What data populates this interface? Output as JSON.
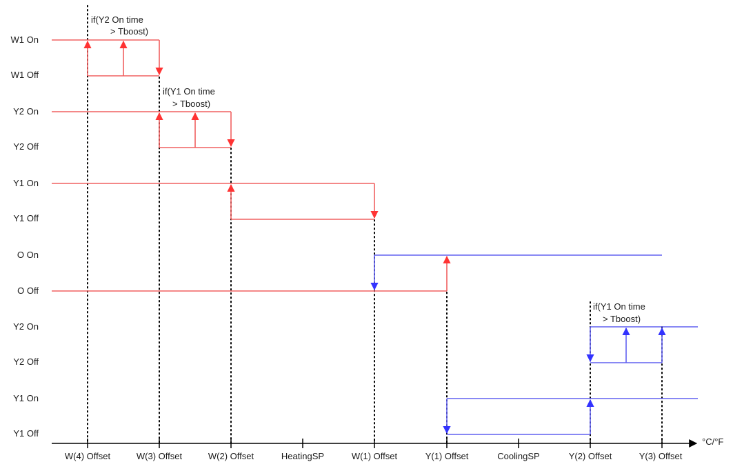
{
  "y_labels": [
    "W1 On",
    "W1 Off",
    "Y2 On",
    "Y2 Off",
    "Y1 On",
    "Y1 Off",
    "O On",
    "O Off",
    "Y2 On",
    "Y2 Off",
    "Y1 On",
    "Y1 Off"
  ],
  "x_labels": [
    "W(4) Offset",
    "W(3) Offset",
    "W(2) Offset",
    "HeatingSP",
    "W(1) Offset",
    "Y(1) Offset",
    "CoolingSP",
    "Y(2) Offset",
    "Y(3) Offset"
  ],
  "axis_unit": "°C/°F",
  "notes": [
    {
      "line1": "if(Y2 On time",
      "line2": "> Tboost)"
    },
    {
      "line1": "if(Y1 On time",
      "line2": "> Tboost)"
    },
    {
      "line1": "if(Y1 On time",
      "line2": "> Tboost)"
    }
  ],
  "colors": {
    "heating": "#ff0000",
    "cooling": "#0000ff",
    "axis": "#000000"
  }
}
